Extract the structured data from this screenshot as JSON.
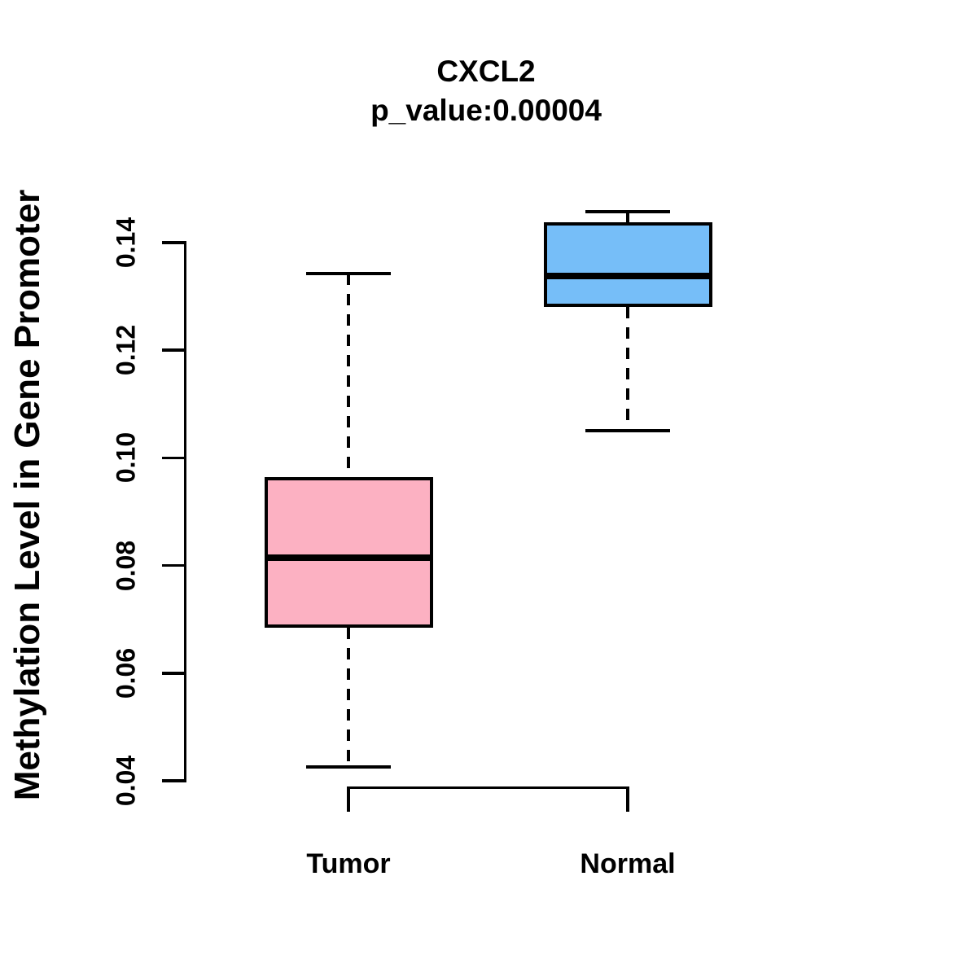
{
  "title": "CXCL2",
  "subtitle": "p_value:0.00004",
  "chart_data": {
    "type": "boxplot",
    "title": "CXCL2",
    "subtitle": "p_value:0.00004",
    "p_value": "0.00004",
    "ylabel": "Methylation Level in Gene Promoter",
    "xlabel": "",
    "categories": [
      "Tumor",
      "Normal"
    ],
    "ylim": [
      0.035,
      0.148
    ],
    "yticks": [
      {
        "value": 0.04,
        "label": "0.04"
      },
      {
        "value": 0.06,
        "label": "0.06"
      },
      {
        "value": 0.08,
        "label": "0.08"
      },
      {
        "value": 0.1,
        "label": "0.10"
      },
      {
        "value": 0.12,
        "label": "0.12"
      },
      {
        "value": 0.14,
        "label": "0.14"
      }
    ],
    "grid": false,
    "legend": false,
    "background_color": "#FFFFFF",
    "line_color": "#000000",
    "series": [
      {
        "name": "Tumor",
        "fill_color": "#FCB1C2",
        "stats": {
          "whisker_low": 0.0426,
          "q1": 0.0685,
          "median": 0.0815,
          "q3": 0.0965,
          "whisker_high": 0.1343
        }
      },
      {
        "name": "Normal",
        "fill_color": "#76BEF8",
        "stats": {
          "whisker_low": 0.105,
          "q1": 0.128,
          "median": 0.1338,
          "q3": 0.1438,
          "whisker_high": 0.1458
        }
      }
    ]
  }
}
